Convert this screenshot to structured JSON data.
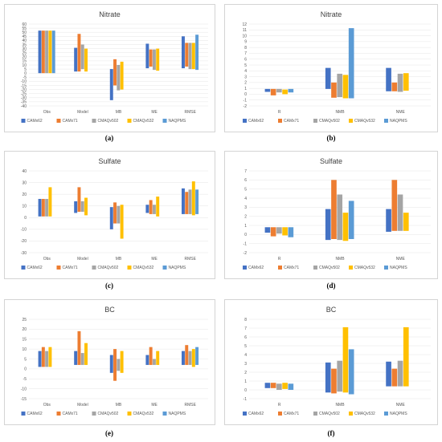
{
  "series_names": [
    "CAMx62",
    "CAMx71",
    "CMAQv502",
    "CMAQv532",
    "NAQPMS"
  ],
  "colors": [
    "#4472c4",
    "#ed7d31",
    "#a5a5a5",
    "#ffc000",
    "#5b9bd5"
  ],
  "panel_labels": [
    "(a)",
    "(b)",
    "(c)",
    "(d)",
    "(e)",
    "(f)"
  ],
  "chart_data": [
    {
      "type": "bar",
      "panel": "a",
      "title": "Nitrate",
      "categories": [
        "Obs",
        "Model",
        "MB",
        "ME",
        "RMSE"
      ],
      "ylim": [
        -40,
        60
      ],
      "ystep": 5,
      "series": [
        {
          "name": "CAMx62",
          "ranges": [
            [
              0,
              52
            ],
            [
              2,
              31
            ],
            [
              -33,
              5
            ],
            [
              6,
              36
            ],
            [
              6,
              45
            ]
          ]
        },
        {
          "name": "CAMx71",
          "ranges": [
            [
              0,
              52
            ],
            [
              2,
              48
            ],
            [
              -15,
              17
            ],
            [
              8,
              29
            ],
            [
              8,
              37
            ]
          ]
        },
        {
          "name": "CMAQv502",
          "ranges": [
            [
              0,
              52
            ],
            [
              5,
              35
            ],
            [
              -21,
              10
            ],
            [
              4,
              29
            ],
            [
              5,
              37
            ]
          ]
        },
        {
          "name": "CMAQv532",
          "ranges": [
            [
              0,
              52
            ],
            [
              2,
              30
            ],
            [
              -20,
              14
            ],
            [
              3,
              30
            ],
            [
              5,
              37
            ]
          ]
        },
        {
          "name": "NAQPMS",
          "ranges": [
            [
              0,
              52
            ],
            [
              0,
              0
            ],
            [
              0,
              0
            ],
            [
              0,
              0
            ],
            [
              4,
              47
            ]
          ]
        }
      ]
    },
    {
      "type": "bar",
      "panel": "b",
      "title": "Nitrate",
      "categories": [
        "R",
        "NMB",
        "NME"
      ],
      "ylim": [
        -2,
        12
      ],
      "ystep": 1,
      "series": [
        {
          "name": "CAMx62",
          "ranges": [
            [
              0.4,
              0.9
            ],
            [
              0.9,
              4.5
            ],
            [
              0.5,
              4.5
            ]
          ]
        },
        {
          "name": "CAMx71",
          "ranges": [
            [
              -0.2,
              0.9
            ],
            [
              -0.6,
              2.0
            ],
            [
              0.5,
              2.0
            ]
          ]
        },
        {
          "name": "CMAQv502",
          "ranges": [
            [
              0.3,
              0.9
            ],
            [
              -0.5,
              3.5
            ],
            [
              0.4,
              3.5
            ]
          ]
        },
        {
          "name": "CMAQv532",
          "ranges": [
            [
              0.0,
              0.8
            ],
            [
              -0.7,
              3.3
            ],
            [
              0.6,
              3.6
            ]
          ]
        },
        {
          "name": "NAQPMS",
          "ranges": [
            [
              0.3,
              0.9
            ],
            [
              -0.7,
              11.3
            ],
            [
              0,
              0
            ]
          ]
        }
      ]
    },
    {
      "type": "bar",
      "panel": "c",
      "title": "Sulfate",
      "categories": [
        "Obs",
        "Model",
        "MB",
        "ME",
        "RMSE"
      ],
      "ylim": [
        -30,
        40
      ],
      "ystep": 10,
      "series": [
        {
          "name": "CAMx62",
          "ranges": [
            [
              1,
              16
            ],
            [
              4,
              14
            ],
            [
              -10,
              9
            ],
            [
              4,
              11
            ],
            [
              3,
              25
            ]
          ]
        },
        {
          "name": "CAMx71",
          "ranges": [
            [
              1,
              16
            ],
            [
              5,
              26
            ],
            [
              -5,
              13
            ],
            [
              3,
              15
            ],
            [
              3,
              22
            ]
          ]
        },
        {
          "name": "CMAQv502",
          "ranges": [
            [
              1,
              16
            ],
            [
              5,
              14
            ],
            [
              -5,
              10
            ],
            [
              3,
              11
            ],
            [
              3,
              24
            ]
          ]
        },
        {
          "name": "CMAQv532",
          "ranges": [
            [
              1,
              26
            ],
            [
              2,
              17
            ],
            [
              -18,
              11
            ],
            [
              1,
              18
            ],
            [
              2,
              31
            ]
          ]
        },
        {
          "name": "NAQPMS",
          "ranges": [
            [
              0,
              0
            ],
            [
              0,
              0
            ],
            [
              0,
              0
            ],
            [
              0,
              0
            ],
            [
              3,
              24
            ]
          ]
        }
      ]
    },
    {
      "type": "bar",
      "panel": "d",
      "title": "Sulfate",
      "categories": [
        "R",
        "NMB",
        "NME"
      ],
      "ylim": [
        -2,
        7
      ],
      "ystep": 1,
      "series": [
        {
          "name": "CAMx62",
          "ranges": [
            [
              0.2,
              0.8
            ],
            [
              -0.6,
              2.8
            ],
            [
              0.3,
              2.8
            ]
          ]
        },
        {
          "name": "CAMx71",
          "ranges": [
            [
              -0.2,
              0.8
            ],
            [
              -0.5,
              6.0
            ],
            [
              0.4,
              6.0
            ]
          ]
        },
        {
          "name": "CMAQv502",
          "ranges": [
            [
              0.1,
              0.8
            ],
            [
              -0.6,
              4.4
            ],
            [
              0.4,
              4.4
            ]
          ]
        },
        {
          "name": "CMAQv532",
          "ranges": [
            [
              -0.1,
              0.8
            ],
            [
              -0.7,
              2.4
            ],
            [
              0.4,
              2.4
            ]
          ]
        },
        {
          "name": "NAQPMS",
          "ranges": [
            [
              -0.3,
              0.8
            ],
            [
              -0.5,
              3.7
            ],
            [
              0,
              0
            ]
          ]
        }
      ]
    },
    {
      "type": "bar",
      "panel": "e",
      "title": "BC",
      "categories": [
        "Obs",
        "Model",
        "MB",
        "ME",
        "RMSE"
      ],
      "ylim": [
        -15,
        25
      ],
      "ystep": 5,
      "series": [
        {
          "name": "CAMx62",
          "ranges": [
            [
              1,
              9
            ],
            [
              2,
              9
            ],
            [
              -2,
              7
            ],
            [
              2,
              7
            ],
            [
              2,
              9
            ]
          ]
        },
        {
          "name": "CAMx71",
          "ranges": [
            [
              1,
              11
            ],
            [
              2,
              19
            ],
            [
              -6,
              10
            ],
            [
              2,
              11
            ],
            [
              2,
              12
            ]
          ]
        },
        {
          "name": "CMAQv502",
          "ranges": [
            [
              1,
              9
            ],
            [
              2,
              8
            ],
            [
              -1,
              5
            ],
            [
              2,
              5
            ],
            [
              2,
              9
            ]
          ]
        },
        {
          "name": "CMAQv532",
          "ranges": [
            [
              1,
              11
            ],
            [
              2,
              13
            ],
            [
              -2,
              9
            ],
            [
              2,
              9
            ],
            [
              1,
              10
            ]
          ]
        },
        {
          "name": "NAQPMS",
          "ranges": [
            [
              0,
              0
            ],
            [
              0,
              0
            ],
            [
              0,
              0
            ],
            [
              0,
              0
            ],
            [
              2,
              11
            ]
          ]
        }
      ]
    },
    {
      "type": "bar",
      "panel": "f",
      "title": "BC",
      "categories": [
        "R",
        "NMB",
        "NME"
      ],
      "ylim": [
        -1,
        8
      ],
      "ystep": 1,
      "series": [
        {
          "name": "CAMx62",
          "ranges": [
            [
              0.2,
              0.8
            ],
            [
              -0.3,
              3.1
            ],
            [
              0.4,
              3.2
            ]
          ]
        },
        {
          "name": "CAMx71",
          "ranges": [
            [
              0.2,
              0.8
            ],
            [
              -0.4,
              2.4
            ],
            [
              0.4,
              2.4
            ]
          ]
        },
        {
          "name": "CMAQv502",
          "ranges": [
            [
              0.0,
              0.7
            ],
            [
              -0.2,
              3.3
            ],
            [
              0.4,
              3.3
            ]
          ]
        },
        {
          "name": "CMAQv532",
          "ranges": [
            [
              0.1,
              0.8
            ],
            [
              -0.3,
              7.1
            ],
            [
              0.4,
              7.1
            ]
          ]
        },
        {
          "name": "NAQPMS",
          "ranges": [
            [
              0.0,
              0.7
            ],
            [
              -0.5,
              4.6
            ],
            [
              0,
              0
            ]
          ]
        }
      ]
    }
  ]
}
